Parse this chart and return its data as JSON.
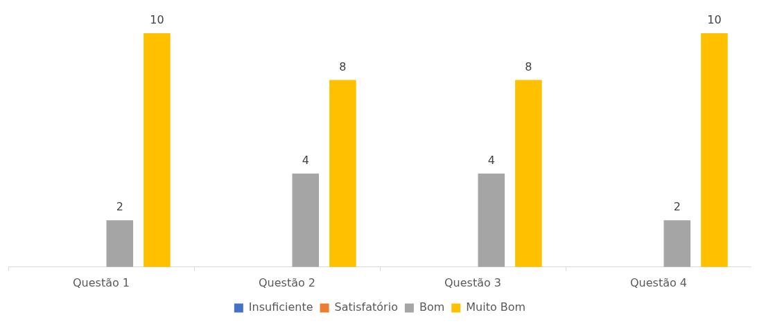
{
  "chart_data": {
    "type": "bar",
    "categories": [
      "Questão 1",
      "Questão 2",
      "Questão 3",
      "Questão 4"
    ],
    "series": [
      {
        "name": "Insuficiente",
        "color": "#4472c4",
        "values": [
          0,
          0,
          0,
          0
        ],
        "value_labels": [
          null,
          null,
          null,
          null
        ]
      },
      {
        "name": "Satisfatório",
        "color": "#ed7d31",
        "values": [
          0,
          0,
          0,
          0
        ],
        "value_labels": [
          null,
          null,
          null,
          null
        ]
      },
      {
        "name": "Bom",
        "color": "#a5a5a5",
        "values": [
          2,
          4,
          4,
          2
        ],
        "value_labels": [
          "2",
          "4",
          "4",
          "2"
        ]
      },
      {
        "name": "Muito Bom",
        "color": "#ffc000",
        "values": [
          10,
          8,
          8,
          10
        ],
        "value_labels": [
          "10",
          "8",
          "8",
          "10"
        ]
      }
    ],
    "legend": "bottom",
    "grid": false
  }
}
